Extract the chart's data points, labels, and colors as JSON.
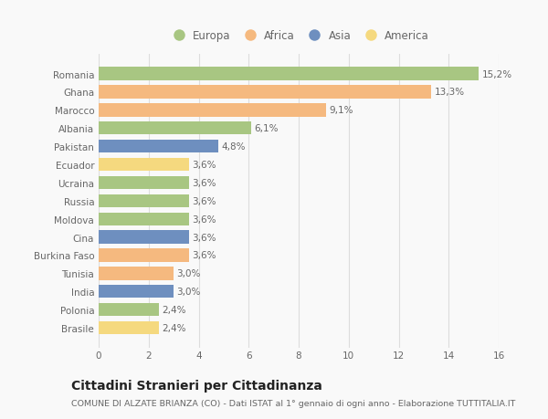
{
  "countries": [
    "Romania",
    "Ghana",
    "Marocco",
    "Albania",
    "Pakistan",
    "Ecuador",
    "Ucraina",
    "Russia",
    "Moldova",
    "Cina",
    "Burkina Faso",
    "Tunisia",
    "India",
    "Polonia",
    "Brasile"
  ],
  "values": [
    15.2,
    13.3,
    9.1,
    6.1,
    4.8,
    3.6,
    3.6,
    3.6,
    3.6,
    3.6,
    3.6,
    3.0,
    3.0,
    2.4,
    2.4
  ],
  "labels": [
    "15,2%",
    "13,3%",
    "9,1%",
    "6,1%",
    "4,8%",
    "3,6%",
    "3,6%",
    "3,6%",
    "3,6%",
    "3,6%",
    "3,6%",
    "3,0%",
    "3,0%",
    "2,4%",
    "2,4%"
  ],
  "continents": [
    "Europa",
    "Africa",
    "Africa",
    "Europa",
    "Asia",
    "America",
    "Europa",
    "Europa",
    "Europa",
    "Asia",
    "Africa",
    "Africa",
    "Asia",
    "Europa",
    "America"
  ],
  "continent_colors": {
    "Europa": "#a8c682",
    "Africa": "#f5b97f",
    "Asia": "#6e8fbf",
    "America": "#f5d97f"
  },
  "legend_order": [
    "Europa",
    "Africa",
    "Asia",
    "America"
  ],
  "xlim": [
    0,
    16
  ],
  "xticks": [
    0,
    2,
    4,
    6,
    8,
    10,
    12,
    14,
    16
  ],
  "title": "Cittadini Stranieri per Cittadinanza",
  "subtitle": "COMUNE DI ALZATE BRIANZA (CO) - Dati ISTAT al 1° gennaio di ogni anno - Elaborazione TUTTITALIA.IT",
  "bg_color": "#f9f9f9",
  "grid_color": "#dddddd",
  "bar_height": 0.72,
  "label_fontsize": 7.5,
  "title_fontsize": 10,
  "subtitle_fontsize": 6.8,
  "tick_fontsize": 7.5,
  "legend_fontsize": 8.5
}
